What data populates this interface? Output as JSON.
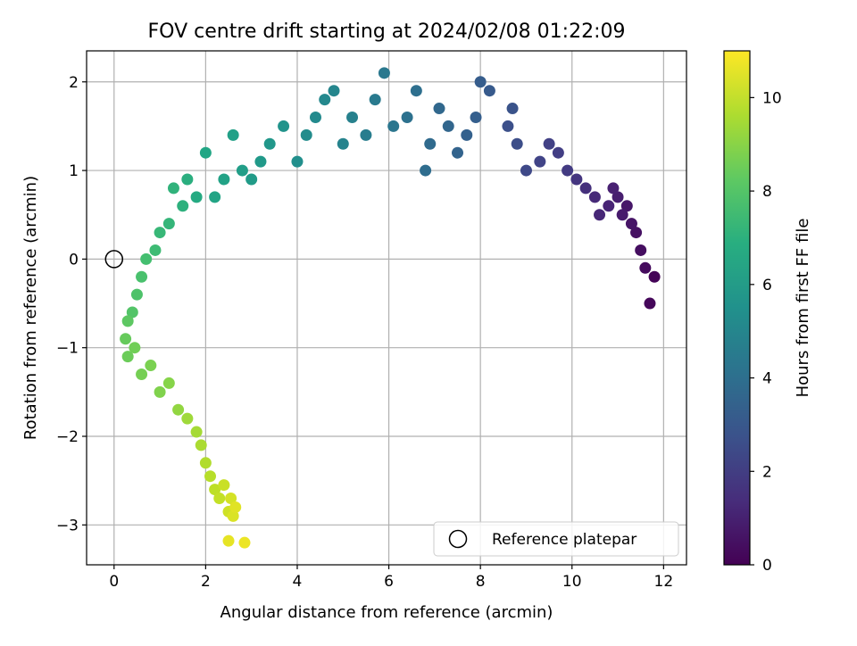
{
  "chart_data": {
    "type": "scatter",
    "title": "FOV centre drift starting at 2024/02/08 01:22:09",
    "xlabel": "Angular distance from reference (arcmin)",
    "ylabel": "Rotation from reference (arcmin)",
    "xlim": [
      -0.6,
      12.5
    ],
    "ylim": [
      -3.45,
      2.35
    ],
    "xticks": [
      0,
      2,
      4,
      6,
      8,
      10,
      12
    ],
    "xtick_labels": [
      "0",
      "2",
      "4",
      "6",
      "8",
      "10",
      "12"
    ],
    "yticks": [
      -3,
      -2,
      -1,
      0,
      1,
      2
    ],
    "ytick_labels": [
      "−3",
      "−2",
      "−1",
      "0",
      "1",
      "2"
    ],
    "grid": true,
    "colormap": "viridis",
    "colorbar": {
      "label": "Hours from first FF file",
      "range": [
        0,
        11
      ],
      "ticks": [
        0,
        2,
        4,
        6,
        8,
        10
      ],
      "tick_labels": [
        "0",
        "2",
        "4",
        "6",
        "8",
        "10"
      ]
    },
    "legend": {
      "position": "lower-right",
      "entries": [
        "Reference platepar"
      ]
    },
    "reference_point": {
      "x": 0,
      "y": 0,
      "label": "Reference platepar"
    },
    "series": [
      {
        "x": [
          11.8,
          11.7,
          11.6,
          11.5,
          11.4,
          11.3,
          11.2,
          11.1,
          11.0,
          10.9,
          10.8,
          10.6,
          10.5,
          10.3,
          10.1,
          9.9,
          9.7,
          9.5,
          9.3,
          9.0,
          8.8,
          8.6,
          8.7,
          8.2,
          8.0,
          7.9,
          7.7,
          7.5,
          7.3,
          7.1,
          6.9,
          6.8,
          6.6,
          6.4,
          6.1,
          5.9,
          5.7,
          5.5,
          5.2,
          5.0,
          4.8,
          4.6,
          4.4,
          4.2,
          4.0,
          3.7,
          3.4,
          3.2,
          3.0,
          2.8,
          2.6,
          2.4,
          2.2,
          2.0,
          1.8,
          1.6,
          1.5,
          1.3,
          1.2,
          1.0,
          0.9,
          0.7,
          0.6,
          0.5,
          0.4,
          0.3,
          0.25,
          0.3,
          0.45,
          0.6,
          0.8,
          1.0,
          1.2,
          1.4,
          1.6,
          1.8,
          1.9,
          2.0,
          2.1,
          2.2,
          2.3,
          2.4,
          2.5,
          2.55,
          2.6,
          2.65,
          2.5,
          2.85
        ],
        "y": [
          -0.2,
          -0.5,
          -0.1,
          0.1,
          0.3,
          0.4,
          0.6,
          0.5,
          0.7,
          0.8,
          0.6,
          0.5,
          0.7,
          0.8,
          0.9,
          1.0,
          1.2,
          1.3,
          1.1,
          1.0,
          1.3,
          1.5,
          1.7,
          1.9,
          2.0,
          1.6,
          1.4,
          1.2,
          1.5,
          1.7,
          1.3,
          1.0,
          1.9,
          1.6,
          1.5,
          2.1,
          1.8,
          1.4,
          1.6,
          1.3,
          1.9,
          1.8,
          1.6,
          1.4,
          1.1,
          1.5,
          1.3,
          1.1,
          0.9,
          1.0,
          1.4,
          0.9,
          0.7,
          1.2,
          0.7,
          0.9,
          0.6,
          0.8,
          0.4,
          0.3,
          0.1,
          0.0,
          -0.2,
          -0.4,
          -0.6,
          -0.7,
          -0.9,
          -1.1,
          -1.0,
          -1.3,
          -1.2,
          -1.5,
          -1.4,
          -1.7,
          -1.8,
          -1.95,
          -2.1,
          -2.3,
          -2.45,
          -2.6,
          -2.7,
          -2.55,
          -2.85,
          -2.7,
          -2.9,
          -2.8,
          -3.18,
          -3.2
        ],
        "hours": [
          0.1,
          0.2,
          0.3,
          0.4,
          0.5,
          0.6,
          0.7,
          0.8,
          0.9,
          1.0,
          1.1,
          1.2,
          1.3,
          1.5,
          1.7,
          1.9,
          2.0,
          2.1,
          2.2,
          2.4,
          2.6,
          2.7,
          2.8,
          3.1,
          3.2,
          3.3,
          3.4,
          3.5,
          3.6,
          3.7,
          3.8,
          3.9,
          4.0,
          4.1,
          4.3,
          4.4,
          4.5,
          4.6,
          4.8,
          4.9,
          5.0,
          5.1,
          5.2,
          5.3,
          5.4,
          5.6,
          5.8,
          5.9,
          6.0,
          6.1,
          6.2,
          6.3,
          6.4,
          6.5,
          6.7,
          6.9,
          7.0,
          7.1,
          7.2,
          7.3,
          7.5,
          7.7,
          7.8,
          7.9,
          8.0,
          8.2,
          8.4,
          8.5,
          8.6,
          8.7,
          8.8,
          8.9,
          9.0,
          9.2,
          9.4,
          9.5,
          9.6,
          9.7,
          9.8,
          9.9,
          10.0,
          10.1,
          10.2,
          10.3,
          10.4,
          10.5,
          10.6,
          10.7
        ]
      }
    ]
  }
}
